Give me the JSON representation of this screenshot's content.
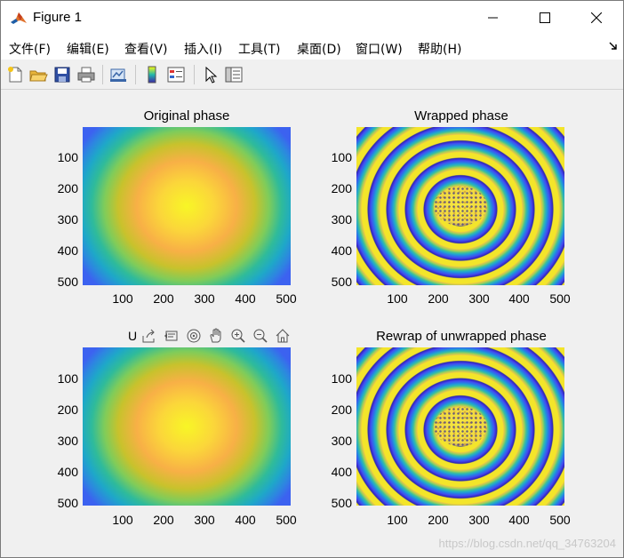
{
  "window": {
    "title": "Figure 1"
  },
  "menu": {
    "items": [
      "文件(F)",
      "编辑(E)",
      "查看(V)",
      "插入(I)",
      "工具(T)",
      "桌面(D)",
      "窗口(W)",
      "帮助(H)"
    ],
    "overflow_icon": "dock-arrow-icon"
  },
  "toolbar": {
    "icons": [
      "new-figure-icon",
      "open-file-icon",
      "save-icon",
      "print-icon",
      "link-plot-icon",
      "insert-colorbar-icon",
      "insert-legend-icon",
      "edit-pointer-icon",
      "property-inspector-icon"
    ]
  },
  "axes_toolbar": {
    "label": "U",
    "icons": [
      "export-icon",
      "brush-icon",
      "data-tips-icon",
      "rotate-icon",
      "pan-icon",
      "zoom-in-icon",
      "zoom-out-icon",
      "home-icon"
    ]
  },
  "axes": [
    {
      "title": "Original phase",
      "xticks": [
        "100",
        "200",
        "300",
        "400",
        "500"
      ],
      "yticks": [
        "100",
        "200",
        "300",
        "400",
        "500"
      ],
      "colormap": "parula",
      "content": "smooth paraboloid phase"
    },
    {
      "title": "Wrapped phase",
      "xticks": [
        "100",
        "200",
        "300",
        "400",
        "500"
      ],
      "yticks": [
        "100",
        "200",
        "300",
        "400",
        "500"
      ],
      "colormap": "parula",
      "content": "concentric wrapped fringes"
    },
    {
      "title": "",
      "xticks": [
        "100",
        "200",
        "300",
        "400",
        "500"
      ],
      "yticks": [
        "100",
        "200",
        "300",
        "400",
        "500"
      ],
      "colormap": "parula",
      "content": "smooth unwrapped phase"
    },
    {
      "title": "Rewrap of unwrapped phase",
      "xticks": [
        "100",
        "200",
        "300",
        "400",
        "500"
      ],
      "yticks": [
        "100",
        "200",
        "300",
        "400",
        "500"
      ],
      "colormap": "parula",
      "content": "concentric wrapped fringes"
    }
  ],
  "watermark": "https://blog.csdn.net/qq_34763204",
  "colors": {
    "window_bg": "#f0f0f0",
    "titlebar_bg": "#ffffff",
    "colormap_low": "#3e26a8",
    "colormap_high": "#f9fb0e"
  }
}
